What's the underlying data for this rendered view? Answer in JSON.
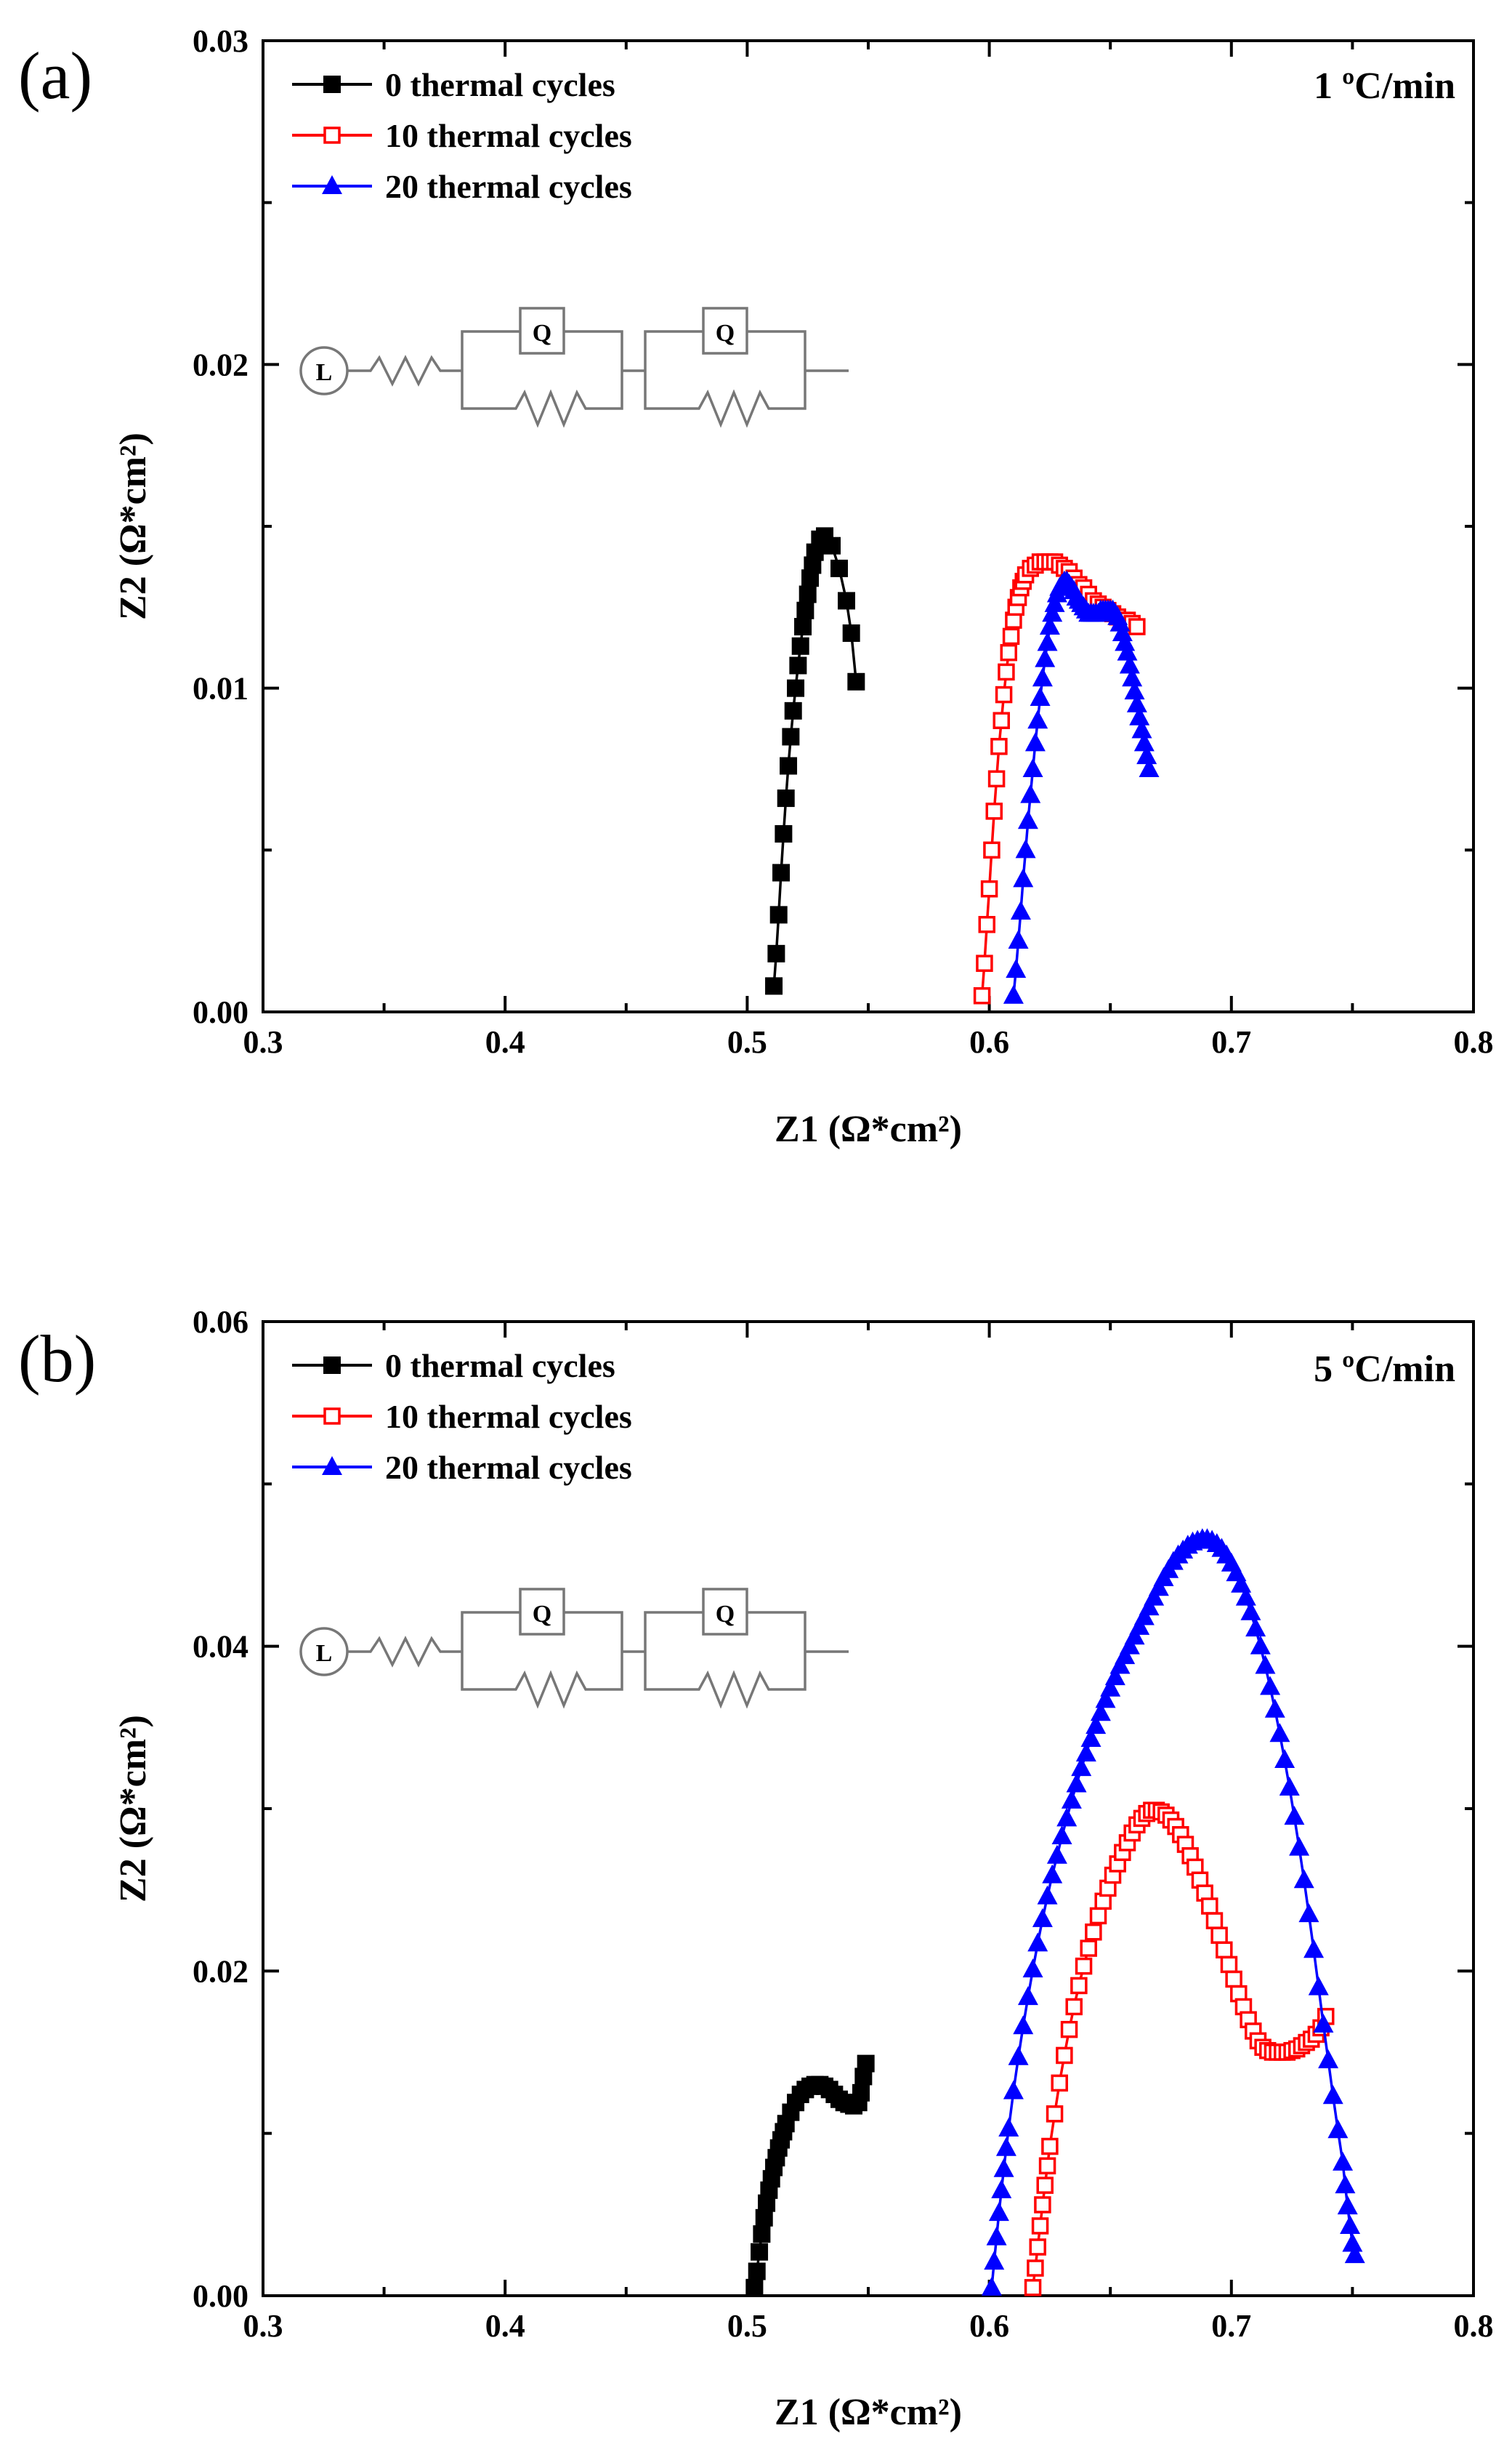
{
  "chart_data": [
    {
      "type": "scatter",
      "panel_label": "(a)",
      "annotation": "1 ºC/min",
      "xlabel": "Z1 (Ω*cm²)",
      "ylabel": "Z2 (Ω*cm²)",
      "xlim": [
        0.3,
        0.8
      ],
      "ylim": [
        0,
        0.03
      ],
      "xticks": [
        "0.3",
        "0.4",
        "0.5",
        "0.6",
        "0.7",
        "0.8"
      ],
      "yticks": [
        "0.00",
        "0.01",
        "0.02",
        "0.03"
      ],
      "legend_position": "top-left",
      "circuit": {
        "inductor_label": "L",
        "element_labels": [
          "Q",
          "Q"
        ]
      },
      "series": [
        {
          "name": "0 thermal cycles",
          "color": "#000000",
          "marker": "filled-square",
          "x": [
            0.511,
            0.512,
            0.513,
            0.514,
            0.515,
            0.516,
            0.517,
            0.518,
            0.519,
            0.52,
            0.521,
            0.522,
            0.523,
            0.524,
            0.525,
            0.526,
            0.527,
            0.528,
            0.53,
            0.532,
            0.535,
            0.538,
            0.541,
            0.543,
            0.545
          ],
          "y": [
            0.0008,
            0.0018,
            0.003,
            0.0043,
            0.0055,
            0.0066,
            0.0076,
            0.0085,
            0.0093,
            0.01,
            0.0107,
            0.0113,
            0.0119,
            0.0124,
            0.0129,
            0.0134,
            0.0138,
            0.0142,
            0.0146,
            0.0147,
            0.0144,
            0.0137,
            0.0127,
            0.0117,
            0.0102
          ]
        },
        {
          "name": "10 thermal cycles",
          "color": "#ff0000",
          "marker": "open-square",
          "x": [
            0.597,
            0.598,
            0.599,
            0.6,
            0.601,
            0.602,
            0.603,
            0.604,
            0.605,
            0.606,
            0.607,
            0.608,
            0.609,
            0.61,
            0.611,
            0.612,
            0.613,
            0.614,
            0.615,
            0.617,
            0.619,
            0.621,
            0.623,
            0.625,
            0.627,
            0.629,
            0.631,
            0.633,
            0.635,
            0.637,
            0.639,
            0.641,
            0.643,
            0.645,
            0.647,
            0.649,
            0.651,
            0.653,
            0.655,
            0.657,
            0.659,
            0.661
          ],
          "y": [
            0.0005,
            0.0015,
            0.0027,
            0.0038,
            0.005,
            0.0062,
            0.0072,
            0.0082,
            0.009,
            0.0098,
            0.0105,
            0.0111,
            0.0116,
            0.0121,
            0.0125,
            0.0128,
            0.0131,
            0.0133,
            0.0135,
            0.0137,
            0.0138,
            0.0139,
            0.0139,
            0.0139,
            0.0139,
            0.0138,
            0.0137,
            0.0136,
            0.0134,
            0.0132,
            0.0131,
            0.0129,
            0.0127,
            0.0126,
            0.0125,
            0.0124,
            0.0123,
            0.0122,
            0.0121,
            0.0121,
            0.012,
            0.0119
          ]
        },
        {
          "name": "20 thermal cycles",
          "color": "#0000ff",
          "marker": "filled-triangle",
          "x": [
            0.61,
            0.611,
            0.612,
            0.613,
            0.614,
            0.615,
            0.616,
            0.617,
            0.618,
            0.619,
            0.62,
            0.621,
            0.622,
            0.623,
            0.624,
            0.625,
            0.626,
            0.627,
            0.628,
            0.629,
            0.63,
            0.631,
            0.632,
            0.633,
            0.634,
            0.635,
            0.636,
            0.637,
            0.638,
            0.639,
            0.64,
            0.641,
            0.642,
            0.643,
            0.644,
            0.645,
            0.646,
            0.647,
            0.648,
            0.649,
            0.65,
            0.651,
            0.652,
            0.653,
            0.654,
            0.655,
            0.656,
            0.657,
            0.658,
            0.659,
            0.66,
            0.661,
            0.662,
            0.663,
            0.664,
            0.665,
            0.666
          ],
          "y": [
            0.0005,
            0.0013,
            0.0022,
            0.0031,
            0.0041,
            0.005,
            0.0059,
            0.0067,
            0.0075,
            0.0083,
            0.009,
            0.0097,
            0.0103,
            0.0109,
            0.0114,
            0.0119,
            0.0123,
            0.0126,
            0.0129,
            0.0131,
            0.0132,
            0.0133,
            0.0133,
            0.0132,
            0.0131,
            0.013,
            0.0128,
            0.0127,
            0.0126,
            0.0125,
            0.0124,
            0.0123,
            0.0123,
            0.0123,
            0.0123,
            0.0123,
            0.0124,
            0.0124,
            0.0124,
            0.0124,
            0.0124,
            0.0124,
            0.0123,
            0.0122,
            0.012,
            0.0117,
            0.0114,
            0.0111,
            0.0107,
            0.0103,
            0.0099,
            0.0095,
            0.0091,
            0.0087,
            0.0083,
            0.0079,
            0.0075
          ]
        }
      ]
    },
    {
      "type": "scatter",
      "panel_label": "(b)",
      "annotation": "5 ºC/min",
      "xlabel": "Z1 (Ω*cm²)",
      "ylabel": "Z2 (Ω*cm²)",
      "xlim": [
        0.3,
        0.8
      ],
      "ylim": [
        0,
        0.06
      ],
      "xticks": [
        "0.3",
        "0.4",
        "0.5",
        "0.6",
        "0.7",
        "0.8"
      ],
      "yticks": [
        "0.00",
        "0.02",
        "0.04",
        "0.06"
      ],
      "legend_position": "top-left",
      "circuit": {
        "inductor_label": "L",
        "element_labels": [
          "Q",
          "Q"
        ]
      },
      "series": [
        {
          "name": "0 thermal cycles",
          "color": "#000000",
          "marker": "filled-square",
          "x": [
            0.503,
            0.504,
            0.505,
            0.506,
            0.507,
            0.508,
            0.509,
            0.51,
            0.511,
            0.512,
            0.513,
            0.514,
            0.515,
            0.516,
            0.518,
            0.52,
            0.522,
            0.524,
            0.526,
            0.528,
            0.53,
            0.532,
            0.534,
            0.536,
            0.538,
            0.54,
            0.542,
            0.544,
            0.546,
            0.547,
            0.548,
            0.549
          ],
          "y": [
            0.0005,
            0.0015,
            0.0027,
            0.0038,
            0.0048,
            0.0057,
            0.0065,
            0.0072,
            0.0079,
            0.0085,
            0.0091,
            0.0096,
            0.0101,
            0.0106,
            0.0113,
            0.0119,
            0.0124,
            0.0127,
            0.0129,
            0.013,
            0.013,
            0.0129,
            0.0127,
            0.0124,
            0.0121,
            0.0119,
            0.0118,
            0.0117,
            0.0119,
            0.0125,
            0.0135,
            0.0143
          ]
        },
        {
          "name": "10 thermal cycles",
          "color": "#ff0000",
          "marker": "open-square",
          "x": [
            0.618,
            0.619,
            0.62,
            0.621,
            0.622,
            0.623,
            0.624,
            0.625,
            0.627,
            0.629,
            0.631,
            0.633,
            0.635,
            0.637,
            0.639,
            0.641,
            0.643,
            0.645,
            0.647,
            0.649,
            0.651,
            0.653,
            0.655,
            0.657,
            0.659,
            0.661,
            0.663,
            0.665,
            0.667,
            0.669,
            0.671,
            0.673,
            0.675,
            0.677,
            0.679,
            0.681,
            0.683,
            0.685,
            0.687,
            0.689,
            0.691,
            0.693,
            0.695,
            0.697,
            0.699,
            0.701,
            0.703,
            0.705,
            0.707,
            0.709,
            0.711,
            0.713,
            0.715,
            0.717,
            0.719,
            0.721,
            0.723,
            0.725,
            0.727,
            0.729,
            0.731,
            0.733,
            0.735,
            0.737,
            0.739
          ],
          "y": [
            0.0005,
            0.0017,
            0.003,
            0.0043,
            0.0056,
            0.0068,
            0.008,
            0.0092,
            0.0112,
            0.0131,
            0.0148,
            0.0164,
            0.0178,
            0.0191,
            0.0203,
            0.0214,
            0.0224,
            0.0234,
            0.0243,
            0.0251,
            0.0259,
            0.0266,
            0.0273,
            0.0279,
            0.0285,
            0.029,
            0.0294,
            0.0297,
            0.0299,
            0.0299,
            0.0298,
            0.0296,
            0.0293,
            0.0289,
            0.0284,
            0.0278,
            0.0271,
            0.0264,
            0.0256,
            0.0248,
            0.024,
            0.0231,
            0.0222,
            0.0213,
            0.0204,
            0.0195,
            0.0186,
            0.0178,
            0.017,
            0.0163,
            0.0157,
            0.0153,
            0.0151,
            0.015,
            0.015,
            0.015,
            0.015,
            0.0151,
            0.0152,
            0.0154,
            0.0156,
            0.0158,
            0.0161,
            0.0165,
            0.0172
          ]
        },
        {
          "name": "20 thermal cycles",
          "color": "#0000ff",
          "marker": "filled-triangle",
          "x": [
            0.601,
            0.602,
            0.603,
            0.604,
            0.605,
            0.606,
            0.607,
            0.608,
            0.61,
            0.612,
            0.614,
            0.616,
            0.618,
            0.62,
            0.622,
            0.624,
            0.626,
            0.628,
            0.63,
            0.632,
            0.634,
            0.636,
            0.638,
            0.64,
            0.642,
            0.644,
            0.646,
            0.648,
            0.65,
            0.652,
            0.654,
            0.656,
            0.658,
            0.66,
            0.662,
            0.664,
            0.666,
            0.668,
            0.67,
            0.672,
            0.674,
            0.676,
            0.678,
            0.68,
            0.682,
            0.684,
            0.686,
            0.688,
            0.69,
            0.692,
            0.694,
            0.696,
            0.698,
            0.7,
            0.702,
            0.704,
            0.706,
            0.708,
            0.71,
            0.712,
            0.714,
            0.716,
            0.718,
            0.72,
            0.722,
            0.724,
            0.726,
            0.728,
            0.73,
            0.732,
            0.734,
            0.736,
            0.738,
            0.74,
            0.742,
            0.744,
            0.746,
            0.747,
            0.748,
            0.749,
            0.75,
            0.751
          ],
          "y": [
            0.0005,
            0.0021,
            0.0036,
            0.0051,
            0.0065,
            0.0078,
            0.0091,
            0.0103,
            0.0126,
            0.0147,
            0.0166,
            0.0184,
            0.0201,
            0.0217,
            0.0232,
            0.0246,
            0.0259,
            0.0271,
            0.0283,
            0.0294,
            0.0305,
            0.0315,
            0.0325,
            0.0334,
            0.0343,
            0.0351,
            0.0359,
            0.0367,
            0.0374,
            0.0381,
            0.0388,
            0.0394,
            0.04,
            0.0406,
            0.0412,
            0.0418,
            0.0424,
            0.043,
            0.0436,
            0.0442,
            0.0447,
            0.0452,
            0.0456,
            0.0459,
            0.0462,
            0.0464,
            0.0465,
            0.0466,
            0.0466,
            0.0465,
            0.0463,
            0.046,
            0.0456,
            0.0451,
            0.0445,
            0.0438,
            0.043,
            0.0421,
            0.0411,
            0.04,
            0.0388,
            0.0375,
            0.0361,
            0.0346,
            0.033,
            0.0313,
            0.0295,
            0.0276,
            0.0256,
            0.0235,
            0.0213,
            0.019,
            0.0167,
            0.0145,
            0.0123,
            0.0102,
            0.0082,
            0.0068,
            0.0055,
            0.0043,
            0.0032,
            0.0025
          ]
        }
      ]
    }
  ]
}
